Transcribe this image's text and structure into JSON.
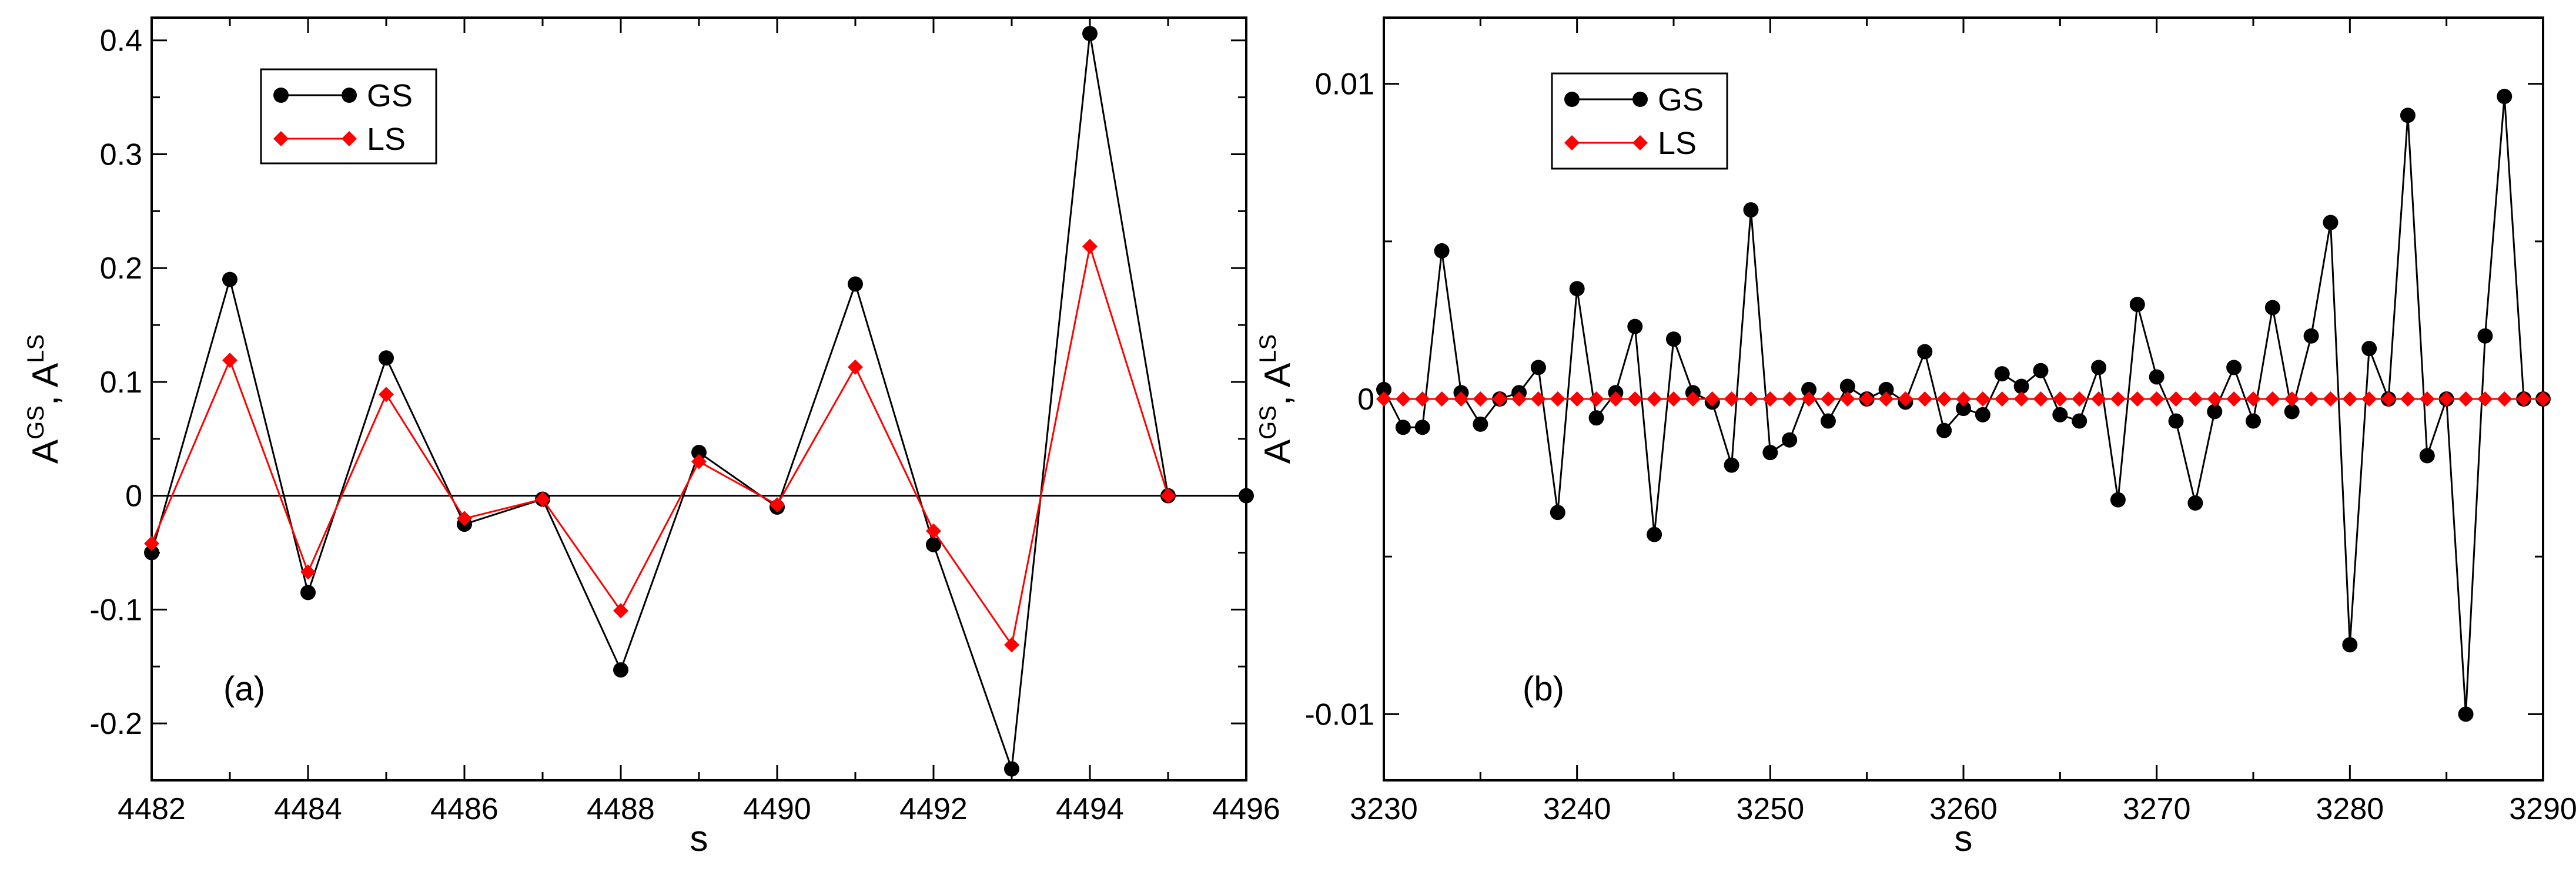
{
  "chart_data": [
    {
      "type": "line",
      "panel_label": "(a)",
      "xlabel": "s",
      "ylabel": {
        "base1": "A",
        "sup1": "GS",
        "sep": ", ",
        "base2": "A",
        "sup2": "LS"
      },
      "xlim": [
        4482,
        4496
      ],
      "ylim": [
        -0.25,
        0.42
      ],
      "xticks": [
        4482,
        4484,
        4486,
        4488,
        4490,
        4492,
        4494,
        4496
      ],
      "xtick_labels": [
        "4482",
        "4484",
        "4486",
        "4488",
        "4490",
        "4492",
        "4494",
        "4496"
      ],
      "yticks": [
        -0.2,
        -0.1,
        0,
        0.1,
        0.2,
        0.3,
        0.4
      ],
      "ytick_labels": [
        "-0.2",
        "-0.1",
        "0",
        "0.1",
        "0.2",
        "0.3",
        "0.4"
      ],
      "zero_line": true,
      "legend": {
        "position": "top-left"
      },
      "series": [
        {
          "name": "GS",
          "color": "#000000",
          "marker": "circle",
          "x": [
            4482,
            4483,
            4484,
            4485,
            4486,
            4487,
            4488,
            4489,
            4490,
            4491,
            4492,
            4493,
            4494,
            4495,
            4496
          ],
          "y": [
            -0.05,
            0.19,
            -0.085,
            0.121,
            -0.025,
            -0.003,
            -0.153,
            0.038,
            -0.01,
            0.186,
            -0.043,
            -0.24,
            0.406,
            0.0,
            0.0
          ]
        },
        {
          "name": "LS",
          "color": "#ff0000",
          "marker": "diamond",
          "x": [
            4482,
            4483,
            4484,
            4485,
            4486,
            4487,
            4488,
            4489,
            4490,
            4491,
            4492,
            4493,
            4494,
            4495
          ],
          "y": [
            -0.042,
            0.119,
            -0.067,
            0.089,
            -0.02,
            -0.003,
            -0.101,
            0.03,
            -0.008,
            0.113,
            -0.031,
            -0.131,
            0.219,
            0.0
          ]
        }
      ]
    },
    {
      "type": "line",
      "panel_label": "(b)",
      "xlabel": "s",
      "ylabel": {
        "base1": "A",
        "sup1": "GS",
        "sep": ", ",
        "base2": "A",
        "sup2": "LS"
      },
      "xlim": [
        3230,
        3290
      ],
      "ylim": [
        -0.0121,
        0.0121
      ],
      "xticks": [
        3230,
        3240,
        3250,
        3260,
        3270,
        3280,
        3290
      ],
      "xtick_labels": [
        "3230",
        "3240",
        "3250",
        "3260",
        "3270",
        "3280",
        "3290"
      ],
      "yticks": [
        -0.01,
        0,
        0.01
      ],
      "ytick_labels": [
        "-0.01",
        "0",
        "0.01"
      ],
      "zero_line": false,
      "legend": {
        "position": "top-left"
      },
      "series": [
        {
          "name": "GS",
          "color": "#000000",
          "marker": "circle",
          "x": [
            3230,
            3231,
            3232,
            3233,
            3234,
            3235,
            3236,
            3237,
            3238,
            3239,
            3240,
            3241,
            3242,
            3243,
            3244,
            3245,
            3246,
            3247,
            3248,
            3249,
            3250,
            3251,
            3252,
            3253,
            3254,
            3255,
            3256,
            3257,
            3258,
            3259,
            3260,
            3261,
            3262,
            3263,
            3264,
            3265,
            3266,
            3267,
            3268,
            3269,
            3270,
            3271,
            3272,
            3273,
            3274,
            3275,
            3276,
            3277,
            3278,
            3279,
            3280,
            3281,
            3282,
            3283,
            3284,
            3285,
            3286,
            3287,
            3288,
            3289,
            3290
          ],
          "y": [
            0.0003,
            -0.0009,
            -0.0009,
            0.0047,
            0.0002,
            -0.0008,
            0.0,
            0.0002,
            0.001,
            -0.0036,
            0.0035,
            -0.0006,
            0.0002,
            0.0023,
            -0.0043,
            0.0019,
            0.0002,
            -0.0001,
            -0.0021,
            0.006,
            -0.0017,
            -0.0013,
            0.0003,
            -0.0007,
            0.0004,
            0.0,
            0.0003,
            -0.0001,
            0.0015,
            -0.001,
            -0.0003,
            -0.0005,
            0.0008,
            0.0004,
            0.0009,
            -0.0005,
            -0.0007,
            0.001,
            -0.0032,
            0.003,
            0.0007,
            -0.0007,
            -0.0033,
            -0.0004,
            0.001,
            -0.0007,
            0.0029,
            -0.0004,
            0.002,
            0.0056,
            -0.0078,
            0.0016,
            0.0,
            0.009,
            -0.0018,
            0.0,
            -0.01,
            0.002,
            0.0096,
            0.0,
            0.0
          ]
        },
        {
          "name": "LS",
          "color": "#ff0000",
          "marker": "diamond",
          "x": [
            3230,
            3231,
            3232,
            3233,
            3234,
            3235,
            3236,
            3237,
            3238,
            3239,
            3240,
            3241,
            3242,
            3243,
            3244,
            3245,
            3246,
            3247,
            3248,
            3249,
            3250,
            3251,
            3252,
            3253,
            3254,
            3255,
            3256,
            3257,
            3258,
            3259,
            3260,
            3261,
            3262,
            3263,
            3264,
            3265,
            3266,
            3267,
            3268,
            3269,
            3270,
            3271,
            3272,
            3273,
            3274,
            3275,
            3276,
            3277,
            3278,
            3279,
            3280,
            3281,
            3282,
            3283,
            3284,
            3285,
            3286,
            3287,
            3288,
            3289,
            3290
          ],
          "y": [
            0.0,
            0.0,
            0.0,
            0.0,
            0.0,
            0.0,
            0.0,
            0.0,
            0.0,
            0.0,
            0.0,
            0.0,
            0.0,
            0.0,
            0.0,
            0.0,
            0.0,
            0.0,
            0.0,
            0.0,
            0.0,
            0.0,
            0.0,
            0.0,
            0.0,
            0.0,
            0.0,
            0.0,
            0.0,
            0.0,
            0.0,
            0.0,
            0.0,
            0.0,
            0.0,
            0.0,
            0.0,
            0.0,
            0.0,
            0.0,
            0.0,
            0.0,
            0.0,
            0.0,
            0.0,
            0.0,
            0.0,
            0.0,
            0.0,
            0.0,
            0.0,
            0.0,
            0.0,
            0.0,
            0.0,
            0.0,
            0.0,
            0.0,
            0.0,
            0.0,
            0.0
          ]
        }
      ]
    }
  ]
}
